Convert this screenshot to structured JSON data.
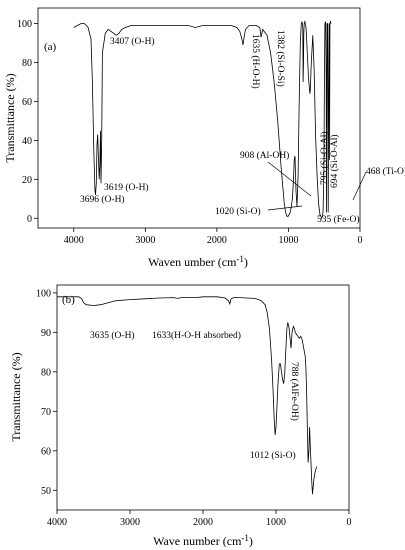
{
  "chart_data": [
    {
      "panel": "(a)",
      "type": "line",
      "xlabel_main": "Waven umber (cm",
      "xlabel_sup": "-1",
      "xlabel_close": ")",
      "ylabel": "Transmittance (%)",
      "xlim": [
        4500,
        0
      ],
      "ylim": [
        -5,
        108
      ],
      "xticks": [
        4000,
        3000,
        2000,
        1000,
        0
      ],
      "yticks": [
        0,
        20,
        40,
        60,
        80,
        100
      ],
      "grid": false,
      "series": [
        {
          "x": [
            4000,
            3950,
            3900,
            3850,
            3800,
            3760,
            3740,
            3720,
            3705,
            3696,
            3685,
            3675,
            3665,
            3655,
            3645,
            3635,
            3627,
            3619,
            3610,
            3600,
            3560,
            3520,
            3480,
            3440,
            3407,
            3370,
            3330,
            3280,
            3200,
            3000,
            2800,
            2600,
            2400,
            2300,
            2200,
            2000,
            1900,
            1800,
            1720,
            1680,
            1650,
            1635,
            1620,
            1600,
            1550,
            1450,
            1400,
            1382,
            1360,
            1300,
            1250,
            1200,
            1150,
            1100,
            1060,
            1040,
            1020,
            1005,
            990,
            975,
            960,
            945,
            930,
            920,
            908,
            895,
            880,
            865,
            850,
            835,
            820,
            810,
            800,
            795,
            790,
            785,
            780,
            770,
            755,
            740,
            720,
            700,
            694,
            680,
            660,
            640,
            620,
            600,
            580,
            560,
            545,
            535,
            525,
            515,
            505,
            498,
            490,
            480,
            472,
            468,
            460,
            452,
            445,
            438,
            430,
            425,
            420,
            412,
            405
          ],
          "y": [
            98,
            99,
            100,
            100,
            98,
            92,
            70,
            35,
            15,
            12,
            18,
            38,
            43,
            30,
            20,
            28,
            45,
            18,
            40,
            85,
            95,
            97,
            96,
            95,
            94,
            95,
            97,
            98,
            99,
            99,
            99,
            99,
            99,
            98,
            99,
            99,
            99,
            99,
            98,
            96,
            92,
            89,
            93,
            97,
            99,
            99,
            98,
            93,
            97,
            94,
            85,
            70,
            50,
            25,
            8,
            3,
            1,
            1,
            2,
            3,
            6,
            10,
            20,
            30,
            32,
            14,
            6,
            22,
            60,
            90,
            100,
            101,
            98,
            70,
            80,
            95,
            100,
            101,
            98,
            88,
            72,
            64,
            66,
            80,
            94,
            75,
            42,
            22,
            8,
            2,
            1,
            0,
            1,
            4,
            25,
            70,
            100,
            101,
            72,
            3,
            100,
            100,
            3,
            65,
            100,
            30,
            100,
            101,
            100
          ]
        }
      ],
      "annotations": [
        {
          "text": "3407 (O-H)"
        },
        {
          "text": "1635 (H-O-H)"
        },
        {
          "text": "1382 (Si-O-Si)"
        },
        {
          "text": "908 (Al-OH)"
        },
        {
          "text": "795 (Si-O-Al)"
        },
        {
          "text": "694 (Si-O-Al)"
        },
        {
          "text": "468 (Ti-O)"
        },
        {
          "text": "3619 (O-H)"
        },
        {
          "text": "3696 (O-H)"
        },
        {
          "text": "1020 (Si-O)"
        },
        {
          "text": "535 (Fe-O)"
        }
      ]
    },
    {
      "panel": "(b)",
      "type": "line",
      "xlabel": "Wave number (cm-1)",
      "ylabel": "Transmittance (%)",
      "xlim": [
        4000,
        0
      ],
      "ylim": [
        45,
        102
      ],
      "xticks": [
        4000,
        3000,
        2000,
        1000,
        0
      ],
      "yticks": [
        50,
        60,
        70,
        80,
        90,
        100
      ],
      "grid": false,
      "series": [
        {
          "x": [
            4000,
            3800,
            3700,
            3660,
            3635,
            3600,
            3500,
            3400,
            3300,
            3200,
            3000,
            2800,
            2600,
            2400,
            2350,
            2300,
            2200,
            2100,
            2000,
            1900,
            1800,
            1700,
            1650,
            1633,
            1615,
            1580,
            1500,
            1400,
            1300,
            1250,
            1200,
            1150,
            1120,
            1090,
            1060,
            1040,
            1025,
            1012,
            1000,
            985,
            970,
            955,
            940,
            925,
            910,
            895,
            880,
            865,
            850,
            840,
            830,
            820,
            810,
            800,
            795,
            788,
            780,
            770,
            760,
            750,
            735,
            720,
            700,
            680,
            660,
            640,
            620,
            600,
            590,
            580,
            570,
            560,
            550,
            540,
            530,
            520,
            510,
            500,
            490,
            480,
            470,
            460,
            450,
            440
          ],
          "y": [
            99,
            99,
            99,
            98.5,
            97.5,
            97,
            96.8,
            97,
            97.5,
            98,
            98.3,
            98.5,
            98.7,
            98.8,
            98.6,
            98.8,
            98.8,
            98.8,
            99,
            99,
            99,
            98.7,
            98,
            97.2,
            98.5,
            98.8,
            98.8,
            98.7,
            98.6,
            98.4,
            98,
            97,
            95,
            91,
            83,
            75,
            68,
            64,
            66,
            72,
            78,
            82,
            82,
            80,
            78,
            77,
            80,
            86,
            91,
            92.5,
            92,
            91,
            89,
            87,
            86,
            88,
            90,
            91,
            91.5,
            91,
            90,
            89.5,
            89,
            88.5,
            89,
            88,
            86,
            84,
            81,
            74,
            65,
            57,
            60,
            66,
            61,
            57,
            52,
            49,
            51,
            53,
            54,
            55,
            55.5,
            56
          ]
        }
      ],
      "annotations": [
        {
          "text": "3635 (O-H)"
        },
        {
          "text": "1633(H-O-H absorbed)"
        },
        {
          "text": "788 (AlFe-OH)"
        },
        {
          "text": "1012 (Si-O)"
        }
      ]
    }
  ],
  "panel_b_xlabel_main": "Wave number (cm",
  "panel_b_xlabel_sup": "-1",
  "panel_b_xlabel_close": ")"
}
